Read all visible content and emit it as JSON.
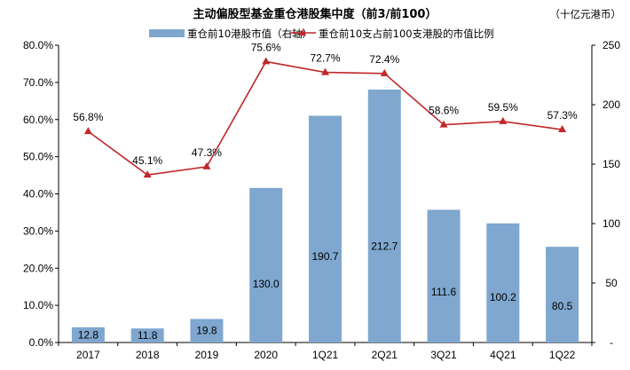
{
  "chart_data": {
    "type": "bar+line",
    "title": "主动偏股型基金重仓港股集中度（前3/前100）",
    "unit_label": "（十亿元港币）",
    "categories": [
      "2017",
      "2018",
      "2019",
      "2020",
      "1Q21",
      "2Q21",
      "3Q21",
      "4Q21",
      "1Q22"
    ],
    "series": [
      {
        "name": "重仓前10港股市值（右轴）",
        "type": "bar",
        "axis": "right",
        "color": "#7FA7CF",
        "values": [
          12.8,
          11.8,
          19.8,
          130.0,
          190.7,
          212.7,
          111.6,
          100.2,
          80.5
        ],
        "labels": [
          "12.8",
          "11.8",
          "19.8",
          "130.0",
          "190.7",
          "212.7",
          "111.6",
          "100.2",
          "80.5"
        ]
      },
      {
        "name": "重仓前10支占前100支港股的市值比例",
        "type": "line",
        "axis": "left",
        "color": "#C0282A",
        "marker": "triangle",
        "values": [
          56.8,
          45.1,
          47.3,
          75.6,
          72.7,
          72.4,
          58.6,
          59.5,
          57.3
        ],
        "labels": [
          "56.8%",
          "45.1%",
          "47.3%",
          "75.6%",
          "72.7%",
          "72.4%",
          "58.6%",
          "59.5%",
          "57.3%"
        ]
      }
    ],
    "y_left": {
      "ylim": [
        0,
        80
      ],
      "ticks": [
        0,
        10,
        20,
        30,
        40,
        50,
        60,
        70,
        80
      ],
      "tick_labels": [
        "0.0%",
        "10.0%",
        "20.0%",
        "30.0%",
        "40.0%",
        "50.0%",
        "60.0%",
        "70.0%",
        "80.0%"
      ]
    },
    "y_right": {
      "ylim": [
        0,
        250
      ],
      "ticks": [
        0,
        50,
        100,
        150,
        200,
        250
      ],
      "tick_labels": [
        "-",
        "50",
        "100",
        "150",
        "200",
        "250"
      ]
    },
    "grid": false,
    "legend_position": "top-center"
  }
}
